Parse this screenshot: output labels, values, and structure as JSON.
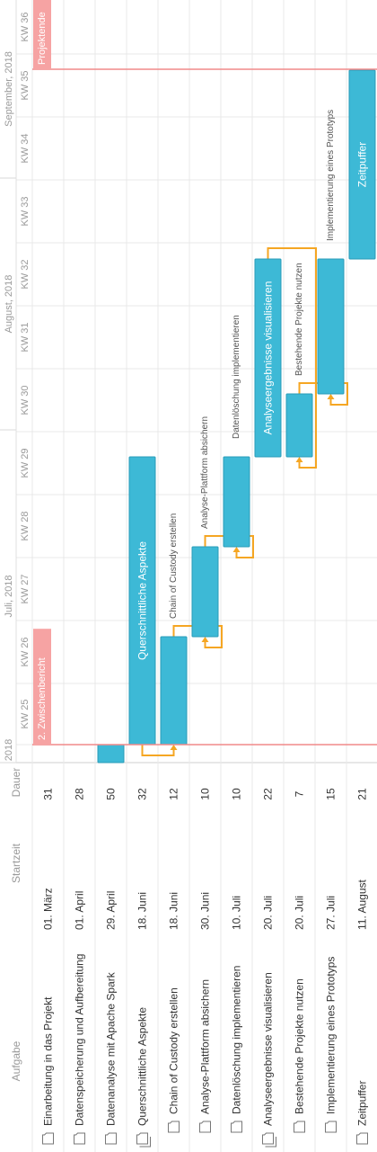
{
  "columns": {
    "task": "Aufgabe",
    "start": "Startzeit",
    "duration": "Dauer"
  },
  "timeline": {
    "months": [
      {
        "label": "2018",
        "rows": [
          820,
          848
        ]
      },
      {
        "label": "Juli, 2018",
        "rows": [
          478,
          848
        ]
      },
      {
        "label": "August, 2018",
        "rows": [
          198,
          478
        ]
      },
      {
        "label": "September, 2018",
        "rows": [
          0,
          198
        ]
      }
    ],
    "weeks": [
      {
        "label": "KW 25",
        "from": 760,
        "to": 828
      },
      {
        "label": "KW 26",
        "from": 690,
        "to": 760
      },
      {
        "label": "KW 27",
        "from": 620,
        "to": 690
      },
      {
        "label": "KW 28",
        "from": 550,
        "to": 620
      },
      {
        "label": "KW 29",
        "from": 480,
        "to": 550
      },
      {
        "label": "KW 30",
        "from": 410,
        "to": 480
      },
      {
        "label": "KW 31",
        "from": 340,
        "to": 410
      },
      {
        "label": "KW 32",
        "from": 270,
        "to": 340
      },
      {
        "label": "KW 33",
        "from": 200,
        "to": 270
      },
      {
        "label": "KW 34",
        "from": 130,
        "to": 200
      },
      {
        "label": "KW 35",
        "from": 60,
        "to": 130
      },
      {
        "label": "KW 36",
        "from": 0,
        "to": 60
      }
    ]
  },
  "milestones": [
    {
      "label": "2. Zwischenbericht",
      "at": 828
    },
    {
      "label": "Projektende",
      "at": 77
    }
  ],
  "chart_data": {
    "type": "gantt",
    "tasks": [
      {
        "name": "Einarbeitung in das Projekt",
        "start": "01. März",
        "duration": "31",
        "group": false,
        "indent": false
      },
      {
        "name": "Datenspeicherung und Aufbereitung",
        "start": "01. April",
        "duration": "28",
        "group": false,
        "indent": false
      },
      {
        "name": "Datenanalyse mit Apache Spark",
        "start": "29. April",
        "duration": "50",
        "group": false,
        "indent": false
      },
      {
        "name": "Querschnittliche Aspekte",
        "start": "18. Juni",
        "duration": "32",
        "group": true,
        "indent": false
      },
      {
        "name": "Chain of Custody erstellen",
        "start": "18. Juni",
        "duration": "12",
        "group": false,
        "indent": true
      },
      {
        "name": "Analyse-Plattform absichern",
        "start": "30. Juni",
        "duration": "10",
        "group": false,
        "indent": true
      },
      {
        "name": "Datenlöschung implementieren",
        "start": "10. Juli",
        "duration": "10",
        "group": false,
        "indent": true
      },
      {
        "name": "Analyseergebnisse visualisieren",
        "start": "20. Juli",
        "duration": "22",
        "group": true,
        "indent": false
      },
      {
        "name": "Bestehende Projekte nutzen",
        "start": "20. Juli",
        "duration": "7",
        "group": false,
        "indent": true
      },
      {
        "name": "Implementierung eines Prototyps",
        "start": "27. Juli",
        "duration": "15",
        "group": false,
        "indent": true
      },
      {
        "name": "Zeitpuffer",
        "start": "11. August",
        "duration": "21",
        "group": false,
        "indent": false
      }
    ],
    "bars": [
      {
        "task": 2,
        "from": 828,
        "to": 848,
        "label": "",
        "label_inside": false
      },
      {
        "task": 3,
        "from": 508,
        "to": 828,
        "label": "Querschnittliche Aspekte",
        "label_inside": true
      },
      {
        "task": 4,
        "from": 708,
        "to": 828,
        "label": "Chain of Custody erstellen",
        "label_inside": false
      },
      {
        "task": 5,
        "from": 608,
        "to": 708,
        "label": "Analyse-Plattform absichern",
        "label_inside": false
      },
      {
        "task": 6,
        "from": 508,
        "to": 608,
        "label": "Datenlöschung implementieren",
        "label_inside": false
      },
      {
        "task": 7,
        "from": 288,
        "to": 508,
        "label": "Analyseergebnisse visualisieren",
        "label_inside": true
      },
      {
        "task": 8,
        "from": 438,
        "to": 508,
        "label": "Bestehende Projekte nutzen",
        "label_inside": false
      },
      {
        "task": 9,
        "from": 288,
        "to": 438,
        "label": "Implementierung eines Prototyps",
        "label_inside": false
      },
      {
        "task": 10,
        "from": 78,
        "to": 288,
        "label": "Zeitpuffer",
        "label_inside": true
      }
    ],
    "links": [
      [
        3,
        4
      ],
      [
        4,
        5
      ],
      [
        5,
        6
      ],
      [
        7,
        8
      ],
      [
        8,
        9
      ]
    ],
    "colors": {
      "bar": "#3db9d6",
      "bar_border": "#2a9cb8",
      "link": "#f5a623",
      "milestone_line": "#f08a8a",
      "milestone_fill": "#f6a3a3",
      "grid": "#e8e8e8",
      "text": "#333333",
      "header_text": "#9a9a9a"
    }
  }
}
